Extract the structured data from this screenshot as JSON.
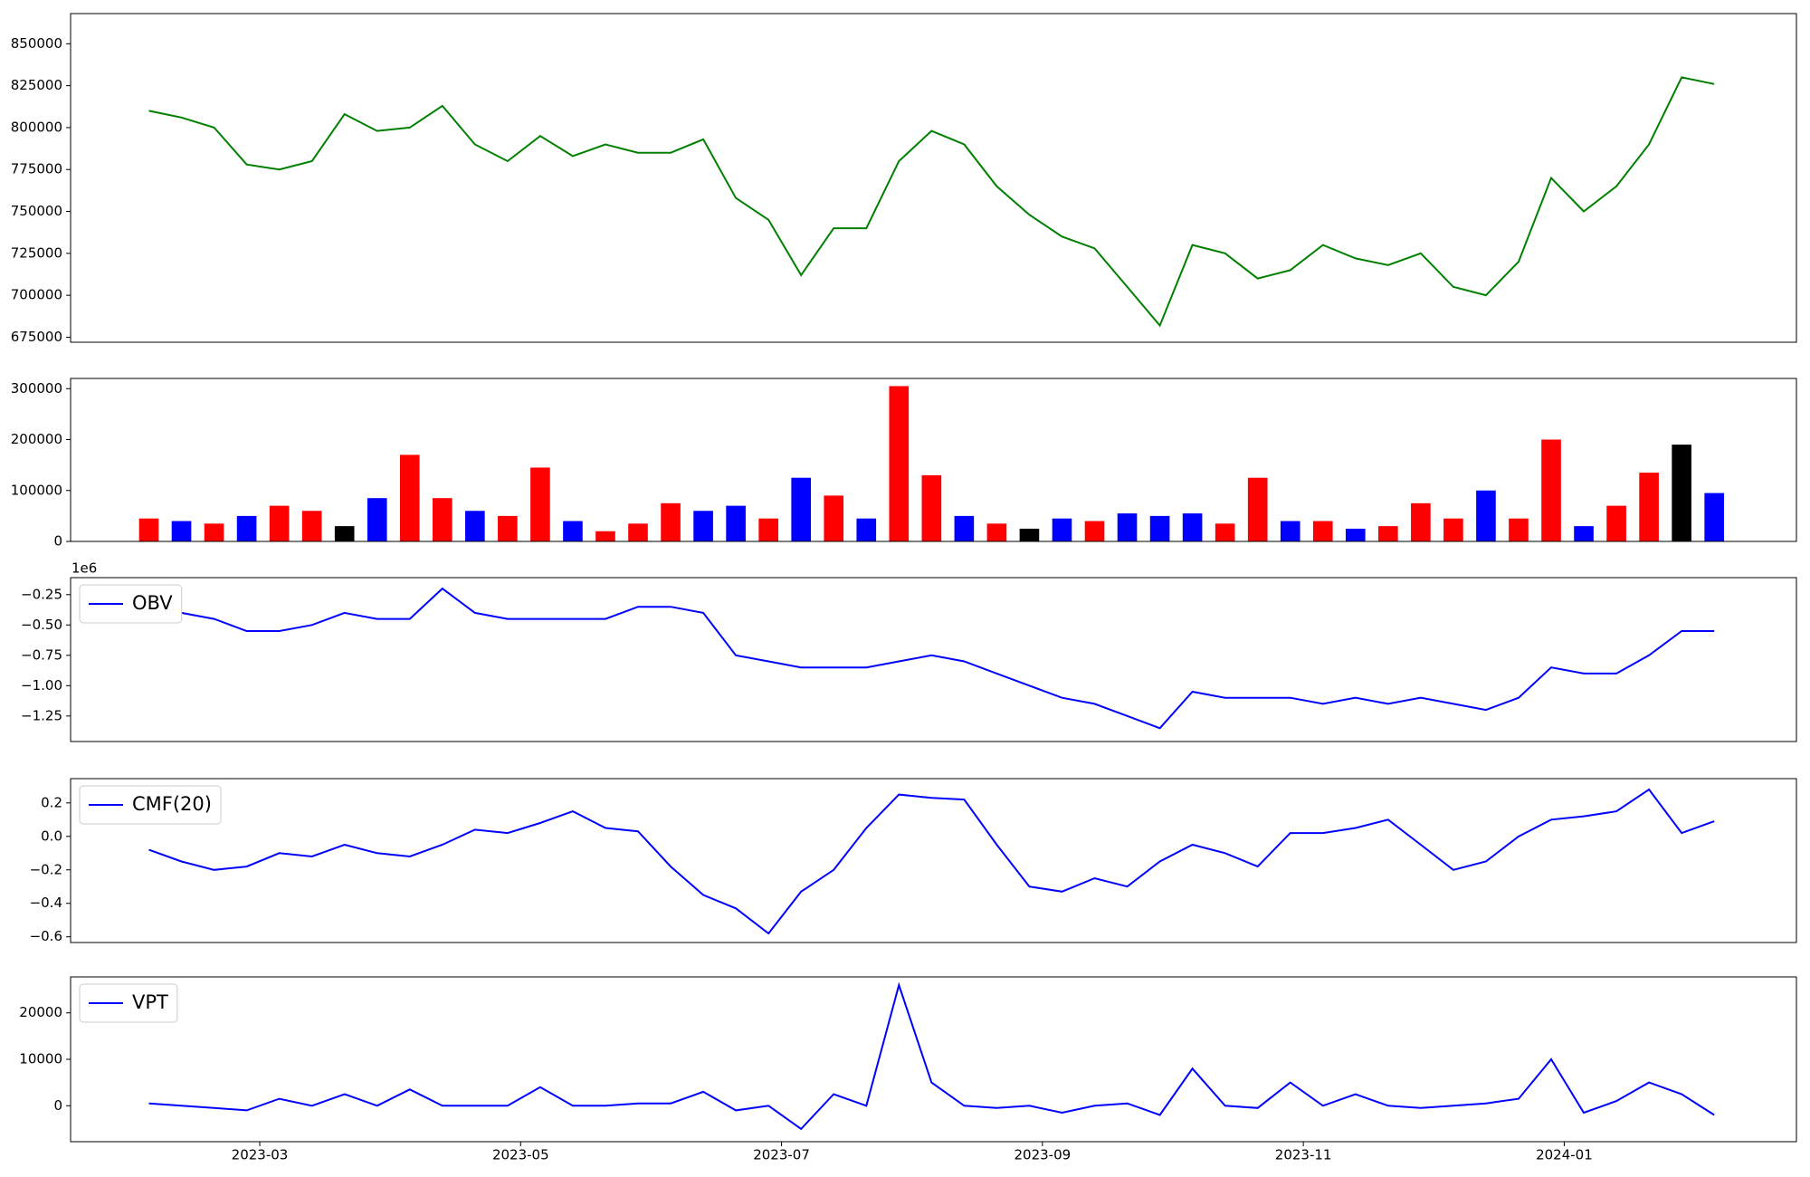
{
  "chart_data": [
    {
      "type": "line",
      "color": "#008000",
      "xlim": [
        1.55,
        14.78
      ],
      "ylim": [
        672000,
        868000
      ],
      "yticks": [
        675000,
        700000,
        725000,
        750000,
        775000,
        800000,
        825000,
        850000
      ],
      "x": [
        2.15,
        2.4,
        2.65,
        2.9,
        3.15,
        3.4,
        3.65,
        3.9,
        4.15,
        4.4,
        4.65,
        4.9,
        5.15,
        5.4,
        5.65,
        5.9,
        6.15,
        6.4,
        6.65,
        6.9,
        7.15,
        7.4,
        7.65,
        7.9,
        8.15,
        8.4,
        8.65,
        8.9,
        9.15,
        9.4,
        9.65,
        9.9,
        10.15,
        10.4,
        10.65,
        10.9,
        11.15,
        11.4,
        11.65,
        11.9,
        12.15,
        12.4,
        12.65,
        12.9,
        13.15,
        13.4,
        13.65,
        13.9,
        14.15
      ],
      "values": [
        810000,
        806000,
        800000,
        778000,
        775000,
        780000,
        808000,
        798000,
        800000,
        813000,
        790000,
        780000,
        795000,
        783000,
        790000,
        785000,
        785000,
        793000,
        758000,
        745000,
        712000,
        740000,
        740000,
        780000,
        798000,
        790000,
        765000,
        748000,
        735000,
        728000,
        705000,
        682000,
        730000,
        725000,
        710000,
        715000,
        730000,
        722000,
        718000,
        725000,
        705000,
        700000,
        720000,
        770000,
        750000,
        765000,
        790000,
        830000,
        826000
      ]
    },
    {
      "type": "bar",
      "xlim": [
        1.55,
        14.78
      ],
      "ylim": [
        0,
        320000
      ],
      "yticks": [
        0,
        100000,
        200000,
        300000
      ],
      "x": [
        2.15,
        2.4,
        2.65,
        2.9,
        3.15,
        3.4,
        3.65,
        3.9,
        4.15,
        4.4,
        4.65,
        4.9,
        5.15,
        5.4,
        5.65,
        5.9,
        6.15,
        6.4,
        6.65,
        6.9,
        7.15,
        7.4,
        7.65,
        7.9,
        8.15,
        8.4,
        8.65,
        8.9,
        9.15,
        9.4,
        9.65,
        9.9,
        10.15,
        10.4,
        10.65,
        10.9,
        11.15,
        11.4,
        11.65,
        11.9,
        12.15,
        12.4,
        12.65,
        12.9,
        13.15,
        13.4,
        13.65,
        13.9,
        14.15
      ],
      "values": [
        45000,
        40000,
        35000,
        50000,
        70000,
        60000,
        30000,
        85000,
        170000,
        85000,
        60000,
        50000,
        145000,
        40000,
        20000,
        35000,
        75000,
        60000,
        70000,
        45000,
        125000,
        90000,
        45000,
        305000,
        130000,
        50000,
        35000,
        25000,
        45000,
        40000,
        55000,
        50000,
        55000,
        35000,
        125000,
        40000,
        40000,
        25000,
        30000,
        75000,
        45000,
        100000,
        45000,
        200000,
        30000,
        70000,
        135000,
        190000,
        95000
      ],
      "colors": [
        "#ff0000",
        "#0000ff",
        "#ff0000",
        "#0000ff",
        "#ff0000",
        "#ff0000",
        "#000000",
        "#0000ff",
        "#ff0000",
        "#ff0000",
        "#0000ff",
        "#ff0000",
        "#ff0000",
        "#0000ff",
        "#ff0000",
        "#ff0000",
        "#ff0000",
        "#0000ff",
        "#0000ff",
        "#ff0000",
        "#0000ff",
        "#ff0000",
        "#0000ff",
        "#ff0000",
        "#ff0000",
        "#0000ff",
        "#ff0000",
        "#000000",
        "#0000ff",
        "#ff0000",
        "#0000ff",
        "#0000ff",
        "#0000ff",
        "#ff0000",
        "#ff0000",
        "#0000ff",
        "#ff0000",
        "#0000ff",
        "#ff0000",
        "#ff0000",
        "#ff0000",
        "#0000ff",
        "#ff0000",
        "#ff0000",
        "#0000ff",
        "#ff0000",
        "#ff0000",
        "#000000",
        "#0000ff"
      ]
    },
    {
      "type": "line",
      "xlim": [
        1.55,
        14.78
      ],
      "ylim": [
        -1.46,
        -0.11
      ],
      "offset_label": "1e6",
      "legend": "upper left",
      "yticks": [
        {
          "value": -1.25,
          "label": "−1.25"
        },
        {
          "value": -1.0,
          "label": "−1.00"
        },
        {
          "value": -0.75,
          "label": "−0.75"
        },
        {
          "value": -0.5,
          "label": "−0.50"
        },
        {
          "value": -0.25,
          "label": "−0.25"
        }
      ],
      "x": [
        2.15,
        2.4,
        2.65,
        2.9,
        3.15,
        3.4,
        3.65,
        3.9,
        4.15,
        4.4,
        4.65,
        4.9,
        5.15,
        5.4,
        5.65,
        5.9,
        6.15,
        6.4,
        6.65,
        6.9,
        7.15,
        7.4,
        7.65,
        7.9,
        8.15,
        8.4,
        8.65,
        8.9,
        9.15,
        9.4,
        9.65,
        9.9,
        10.15,
        10.4,
        10.65,
        10.9,
        11.15,
        11.4,
        11.65,
        11.9,
        12.15,
        12.4,
        12.65,
        12.9,
        13.15,
        13.4,
        13.65,
        13.9,
        14.15
      ],
      "series": [
        {
          "name": "OBV",
          "color": "#0000ff",
          "values": [
            -0.3,
            -0.4,
            -0.45,
            -0.55,
            -0.55,
            -0.5,
            -0.4,
            -0.45,
            -0.45,
            -0.2,
            -0.4,
            -0.45,
            -0.45,
            -0.45,
            -0.45,
            -0.35,
            -0.35,
            -0.4,
            -0.75,
            -0.8,
            -0.85,
            -0.85,
            -0.85,
            -0.8,
            -0.75,
            -0.8,
            -0.9,
            -1.0,
            -1.1,
            -1.15,
            -1.25,
            -1.35,
            -1.05,
            -1.1,
            -1.1,
            -1.1,
            -1.15,
            -1.1,
            -1.15,
            -1.1,
            -1.15,
            -1.2,
            -1.1,
            -0.85,
            -0.9,
            -0.9,
            -0.75,
            -0.55,
            -0.55
          ]
        }
      ]
    },
    {
      "type": "line",
      "xlim": [
        1.55,
        14.78
      ],
      "ylim": [
        -0.634,
        0.345
      ],
      "legend": "upper left",
      "yticks": [
        {
          "value": -0.6,
          "label": "−0.6"
        },
        {
          "value": -0.4,
          "label": "−0.4"
        },
        {
          "value": -0.2,
          "label": "−0.2"
        },
        {
          "value": 0,
          "label": "0.0"
        },
        0.2
      ],
      "x": [
        2.15,
        2.4,
        2.65,
        2.9,
        3.15,
        3.4,
        3.65,
        3.9,
        4.15,
        4.4,
        4.65,
        4.9,
        5.15,
        5.4,
        5.65,
        5.9,
        6.15,
        6.4,
        6.65,
        6.9,
        7.15,
        7.4,
        7.65,
        7.9,
        8.15,
        8.4,
        8.65,
        8.9,
        9.15,
        9.4,
        9.65,
        9.9,
        10.15,
        10.4,
        10.65,
        10.9,
        11.15,
        11.4,
        11.65,
        11.9,
        12.15,
        12.4,
        12.65,
        12.9,
        13.15,
        13.4,
        13.65,
        13.9,
        14.15
      ],
      "series": [
        {
          "name": "CMF(20)",
          "color": "#0000ff",
          "values": [
            -0.08,
            -0.15,
            -0.2,
            -0.18,
            -0.1,
            -0.12,
            -0.05,
            -0.1,
            -0.12,
            -0.05,
            0.04,
            0.02,
            0.08,
            0.15,
            0.05,
            0.03,
            -0.18,
            -0.35,
            -0.43,
            -0.58,
            -0.33,
            -0.2,
            0.05,
            0.25,
            0.23,
            0.22,
            -0.05,
            -0.3,
            -0.33,
            -0.25,
            -0.3,
            -0.15,
            -0.05,
            -0.1,
            -0.18,
            0.02,
            0.02,
            0.05,
            0.1,
            -0.05,
            -0.2,
            -0.15,
            0,
            0.1,
            0.12,
            0.15,
            0.28,
            0.02,
            0.09
          ]
        }
      ]
    },
    {
      "type": "line",
      "xlim": [
        1.55,
        14.78
      ],
      "ylim": [
        -7750,
        27750
      ],
      "legend": "upper left",
      "yticks": [
        0,
        10000,
        20000
      ],
      "xticks": [
        {
          "value": 3,
          "label": "2023-03"
        },
        {
          "value": 5,
          "label": "2023-05"
        },
        {
          "value": 7,
          "label": "2023-07"
        },
        {
          "value": 9,
          "label": "2023-09"
        },
        {
          "value": 11,
          "label": "2023-11"
        },
        {
          "value": 13,
          "label": "2024-01"
        }
      ],
      "x": [
        2.15,
        2.4,
        2.65,
        2.9,
        3.15,
        3.4,
        3.65,
        3.9,
        4.15,
        4.4,
        4.65,
        4.9,
        5.15,
        5.4,
        5.65,
        5.9,
        6.15,
        6.4,
        6.65,
        6.9,
        7.15,
        7.4,
        7.65,
        7.9,
        8.15,
        8.4,
        8.65,
        8.9,
        9.15,
        9.4,
        9.65,
        9.9,
        10.15,
        10.4,
        10.65,
        10.9,
        11.15,
        11.4,
        11.65,
        11.9,
        12.15,
        12.4,
        12.65,
        12.9,
        13.15,
        13.4,
        13.65,
        13.9,
        14.15
      ],
      "series": [
        {
          "name": "VPT",
          "color": "#0000ff",
          "values": [
            500,
            0,
            -500,
            -1000,
            1500,
            0,
            2500,
            0,
            3500,
            0,
            0,
            0,
            4000,
            0,
            0,
            500,
            500,
            3000,
            -1000,
            0,
            -5000,
            2500,
            0,
            26000,
            5000,
            0,
            -500,
            0,
            -1500,
            0,
            500,
            -2000,
            8000,
            0,
            -500,
            5000,
            0,
            2500,
            0,
            -500,
            0,
            500,
            1500,
            10000,
            -1500,
            1000,
            5000,
            2500,
            -2000
          ]
        }
      ]
    }
  ]
}
